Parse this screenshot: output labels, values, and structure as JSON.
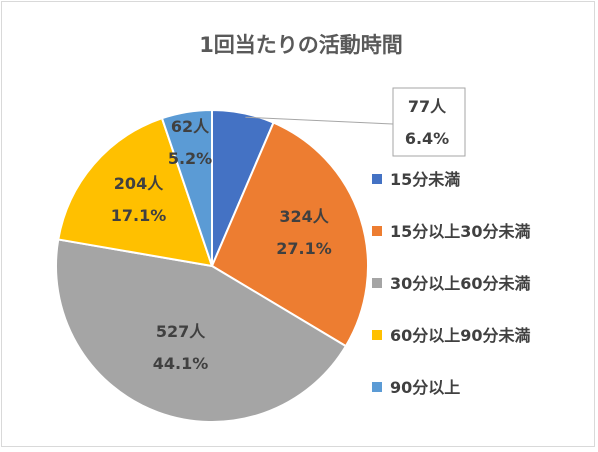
{
  "chart_data": {
    "type": "pie",
    "title": "1回当たりの活動時間",
    "categories": [
      "15分未満",
      "15分以上30分未満",
      "30分以上60分未満",
      "60分以上90分未満",
      "90分以上"
    ],
    "values": [
      77,
      324,
      527,
      204,
      62
    ],
    "value_labels": [
      "77人",
      "324人",
      "527人",
      "204人",
      "62人"
    ],
    "percent_labels": [
      "6.4%",
      "27.1%",
      "44.1%",
      "17.1%",
      "5.2%"
    ],
    "colors": [
      "#4472c4",
      "#ed7d31",
      "#a5a5a5",
      "#ffc000",
      "#5b9bd5"
    ],
    "legend_position": "right"
  }
}
